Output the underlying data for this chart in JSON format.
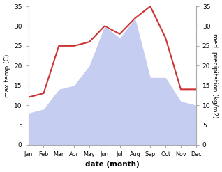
{
  "months": [
    "Jan",
    "Feb",
    "Mar",
    "Apr",
    "May",
    "Jun",
    "Jul",
    "Aug",
    "Sep",
    "Oct",
    "Nov",
    "Dec"
  ],
  "temperature": [
    12,
    13,
    25,
    25,
    26,
    30,
    28,
    32,
    35,
    27,
    14,
    14
  ],
  "precipitation": [
    8,
    9,
    14,
    15,
    20,
    30,
    27,
    32,
    17,
    17,
    11,
    10
  ],
  "temp_color": "#cc3333",
  "precip_fill_color": "#c5cef0",
  "ylabel_left": "max temp (C)",
  "ylabel_right": "med. precipitation (kg/m2)",
  "xlabel": "date (month)",
  "ylim": [
    0,
    35
  ],
  "yticks": [
    0,
    5,
    10,
    15,
    20,
    25,
    30,
    35
  ],
  "bg_color": "#ffffff"
}
